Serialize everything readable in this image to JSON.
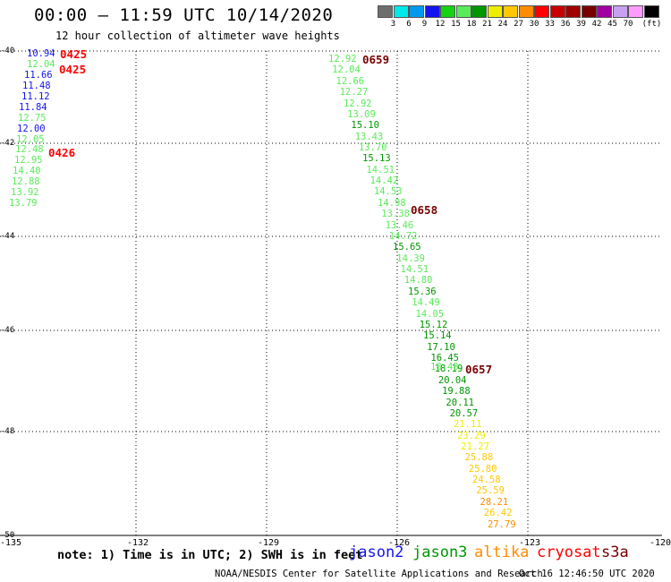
{
  "title": "00:00 – 11:59 UTC 10/14/2020",
  "subtitle": "12 hour collection of altimeter wave heights",
  "colorbar": {
    "colors": [
      "#6e6e6e",
      "#00e8e8",
      "#0099ee",
      "#1414f0",
      "#14d214",
      "#5aeb5a",
      "#009600",
      "#eeee00",
      "#ffc800",
      "#ff8c00",
      "#ff0000",
      "#c80000",
      "#a00000",
      "#780000",
      "#a000a0",
      "#c8a0f0",
      "#ff9bff",
      "#000000"
    ],
    "ticks": [
      "3",
      "6",
      "9",
      "12",
      "15",
      "18",
      "21",
      "24",
      "27",
      "30",
      "33",
      "36",
      "39",
      "42",
      "45",
      "70"
    ],
    "unit": "(ft)"
  },
  "axes": {
    "lat_labels": [
      "-40",
      "-42",
      "-44",
      "-46",
      "-48",
      "-50"
    ],
    "lon_labels": [
      "-135",
      "-132",
      "-129",
      "-126",
      "-123",
      "-120"
    ]
  },
  "tracks": [
    {
      "time_label": "0425",
      "time_color": "#ff0000",
      "values": [
        {
          "v": "10.94",
          "c": "#1414f0"
        },
        {
          "v": "12.04",
          "c": "#5aeb5a"
        },
        {
          "v": "11.66",
          "c": "#1414f0"
        },
        {
          "v": "11.48",
          "c": "#1414f0"
        },
        {
          "v": "11.12",
          "c": "#1414f0"
        },
        {
          "v": "11.84",
          "c": "#1414f0"
        },
        {
          "v": "12.75",
          "c": "#5aeb5a"
        },
        {
          "v": "12.00",
          "c": "#1414f0"
        },
        {
          "v": "12.05",
          "c": "#5aeb5a"
        },
        {
          "v": "12.48",
          "c": "#5aeb5a"
        },
        {
          "v": "12.95",
          "c": "#5aeb5a"
        },
        {
          "v": "14.40",
          "c": "#5aeb5a"
        },
        {
          "v": "12.88",
          "c": "#5aeb5a"
        },
        {
          "v": "13.92",
          "c": "#5aeb5a"
        },
        {
          "v": "13.79",
          "c": "#5aeb5a"
        }
      ]
    },
    {
      "time_label": "0659",
      "time_color": "#780000",
      "values": [
        {
          "v": "12.92",
          "c": "#5aeb5a"
        },
        {
          "v": "12.04",
          "c": "#5aeb5a"
        },
        {
          "v": "12.66",
          "c": "#5aeb5a"
        },
        {
          "v": "12.27",
          "c": "#5aeb5a"
        },
        {
          "v": "12.92",
          "c": "#5aeb5a"
        },
        {
          "v": "13.09",
          "c": "#5aeb5a"
        },
        {
          "v": "15.10",
          "c": "#009600"
        },
        {
          "v": "13.43",
          "c": "#5aeb5a"
        },
        {
          "v": "13.70",
          "c": "#5aeb5a"
        },
        {
          "v": "15.13",
          "c": "#009600"
        },
        {
          "v": "14.51",
          "c": "#5aeb5a"
        },
        {
          "v": "14.42",
          "c": "#5aeb5a"
        },
        {
          "v": "14.53",
          "c": "#5aeb5a"
        },
        {
          "v": "14.98",
          "c": "#5aeb5a"
        },
        {
          "v": "13.38",
          "c": "#5aeb5a"
        },
        {
          "v": "13.46",
          "c": "#5aeb5a"
        },
        {
          "v": "14.72",
          "c": "#5aeb5a"
        },
        {
          "v": "15.65",
          "c": "#009600"
        },
        {
          "v": "14.39",
          "c": "#5aeb5a"
        },
        {
          "v": "14.51",
          "c": "#5aeb5a"
        },
        {
          "v": "14.80",
          "c": "#5aeb5a"
        },
        {
          "v": "15.36",
          "c": "#009600"
        },
        {
          "v": "14.49",
          "c": "#5aeb5a"
        },
        {
          "v": "14.05",
          "c": "#5aeb5a"
        },
        {
          "v": "15.12",
          "c": "#009600"
        },
        {
          "v": "15.14",
          "c": "#009600"
        },
        {
          "v": "17.10",
          "c": "#009600"
        },
        {
          "v": "16.45",
          "c": "#009600"
        },
        {
          "v": "18.19",
          "c": "#009600"
        },
        {
          "v": "20.04",
          "c": "#009600"
        },
        {
          "v": "19.88",
          "c": "#009600"
        },
        {
          "v": "20.11",
          "c": "#009600"
        },
        {
          "v": "20.57",
          "c": "#009600"
        },
        {
          "v": "21.11",
          "c": "#eeee00"
        },
        {
          "v": "23.29",
          "c": "#eeee00"
        },
        {
          "v": "21.27",
          "c": "#eeee00"
        },
        {
          "v": "25.88",
          "c": "#ffc800"
        },
        {
          "v": "25.80",
          "c": "#ffc800"
        },
        {
          "v": "24.58",
          "c": "#ffc800"
        },
        {
          "v": "25.59",
          "c": "#ffc800"
        },
        {
          "v": "28.21",
          "c": "#ff8c00"
        },
        {
          "v": "26.42",
          "c": "#ffc800"
        },
        {
          "v": "27.79",
          "c": "#ff8c00"
        }
      ]
    }
  ],
  "extra_time_labels": [
    {
      "label": "0425",
      "color": "#ff0000"
    },
    {
      "label": "0426",
      "color": "#ff0000"
    },
    {
      "label": "0658",
      "color": "#780000"
    },
    {
      "label": "0657",
      "color": "#780000"
    }
  ],
  "overlap_value": {
    "v": "18.48",
    "c": "#5aeb5a"
  },
  "note": "note: 1) Time is in UTC; 2) SWH is in feet",
  "satellites": [
    {
      "name": "jason2",
      "color": "#1414f0"
    },
    {
      "name": "jason3",
      "color": "#009600"
    },
    {
      "name": "altika",
      "color": "#ff8c00"
    },
    {
      "name": "cryosat",
      "color": "#ff0000"
    },
    {
      "name": "s3a",
      "color": "#780000"
    }
  ],
  "credit": "NOAA/NESDIS Center for Satellite Applications and Research",
  "timestamp": "Oct 16 12:46:50 UTC 2020"
}
